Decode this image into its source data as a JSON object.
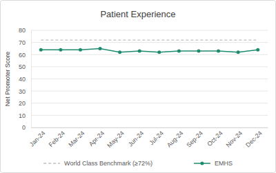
{
  "chart_data": {
    "type": "line",
    "title": "Patient Experience",
    "y_label": "Net Promoter Score",
    "categories": [
      "Jan-24",
      "Feb-24",
      "Mar-24",
      "Apr-24",
      "May-24",
      "Jun-24",
      "Jul-24",
      "Aug-24",
      "Sep-24",
      "Oct-24",
      "Nov-24",
      "Dec-24"
    ],
    "series": [
      {
        "name": "World Class Benchmark (≥72%)",
        "color": "#bfbfbf",
        "line_style": "dashed",
        "marker": "none",
        "values": [
          72,
          72,
          72,
          72,
          72,
          72,
          72,
          72,
          72,
          72,
          72,
          72
        ]
      },
      {
        "name": "EMHS",
        "color": "#1e8a6e",
        "line_style": "solid",
        "marker": "circle",
        "values": [
          64,
          64,
          64,
          65,
          62,
          63,
          62,
          63,
          63,
          63,
          62,
          64
        ]
      }
    ],
    "ylim": [
      0,
      80
    ],
    "yticks": [
      0,
      10,
      20,
      30,
      40,
      50,
      60,
      70,
      80
    ],
    "grid": true,
    "legend": "bottom"
  }
}
